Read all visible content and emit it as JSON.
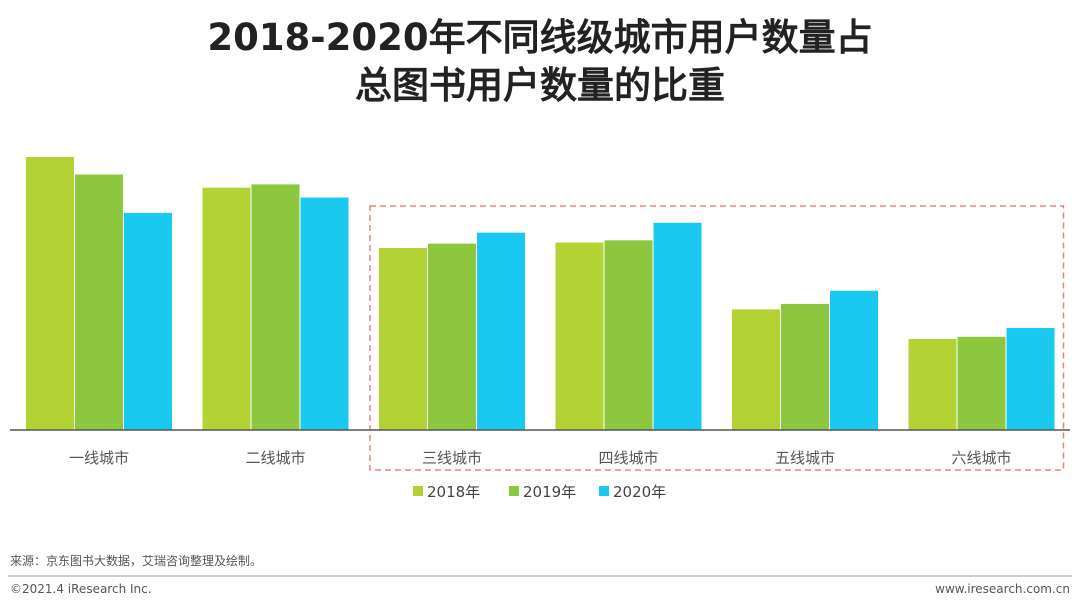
{
  "chart_data": {
    "type": "bar",
    "title": "2018-2020年不同线级城市用户数量占\n总图书用户数量的比重",
    "categories": [
      "一线城市",
      "二线城市",
      "三线城市",
      "四线城市",
      "五线城市",
      "六线城市"
    ],
    "series": [
      {
        "name": "2018年",
        "color": "#b3d234",
        "values": [
          24.9,
          22.1,
          16.6,
          17.1,
          11.0,
          8.3
        ]
      },
      {
        "name": "2019年",
        "color": "#8dc63f",
        "values": [
          23.3,
          22.4,
          17.0,
          17.3,
          11.5,
          8.5
        ]
      },
      {
        "name": "2020年",
        "color": "#1ac8f0",
        "values": [
          19.8,
          21.2,
          18.0,
          18.9,
          12.7,
          9.3
        ]
      }
    ],
    "xlabel": "",
    "ylabel": "",
    "ylim": [
      0,
      28
    ],
    "grid": false,
    "legend": "bottom",
    "highlight": {
      "categories": [
        "三线城市",
        "四线城市",
        "五线城市",
        "六线城市"
      ],
      "style": "dashed",
      "color": "#f08080"
    }
  },
  "footer": {
    "source": "来源：京东图书大数据，艾瑞咨询整理及绘制。",
    "copyright": "©2021.4 iResearch Inc.",
    "website": "www.iresearch.com.cn"
  }
}
